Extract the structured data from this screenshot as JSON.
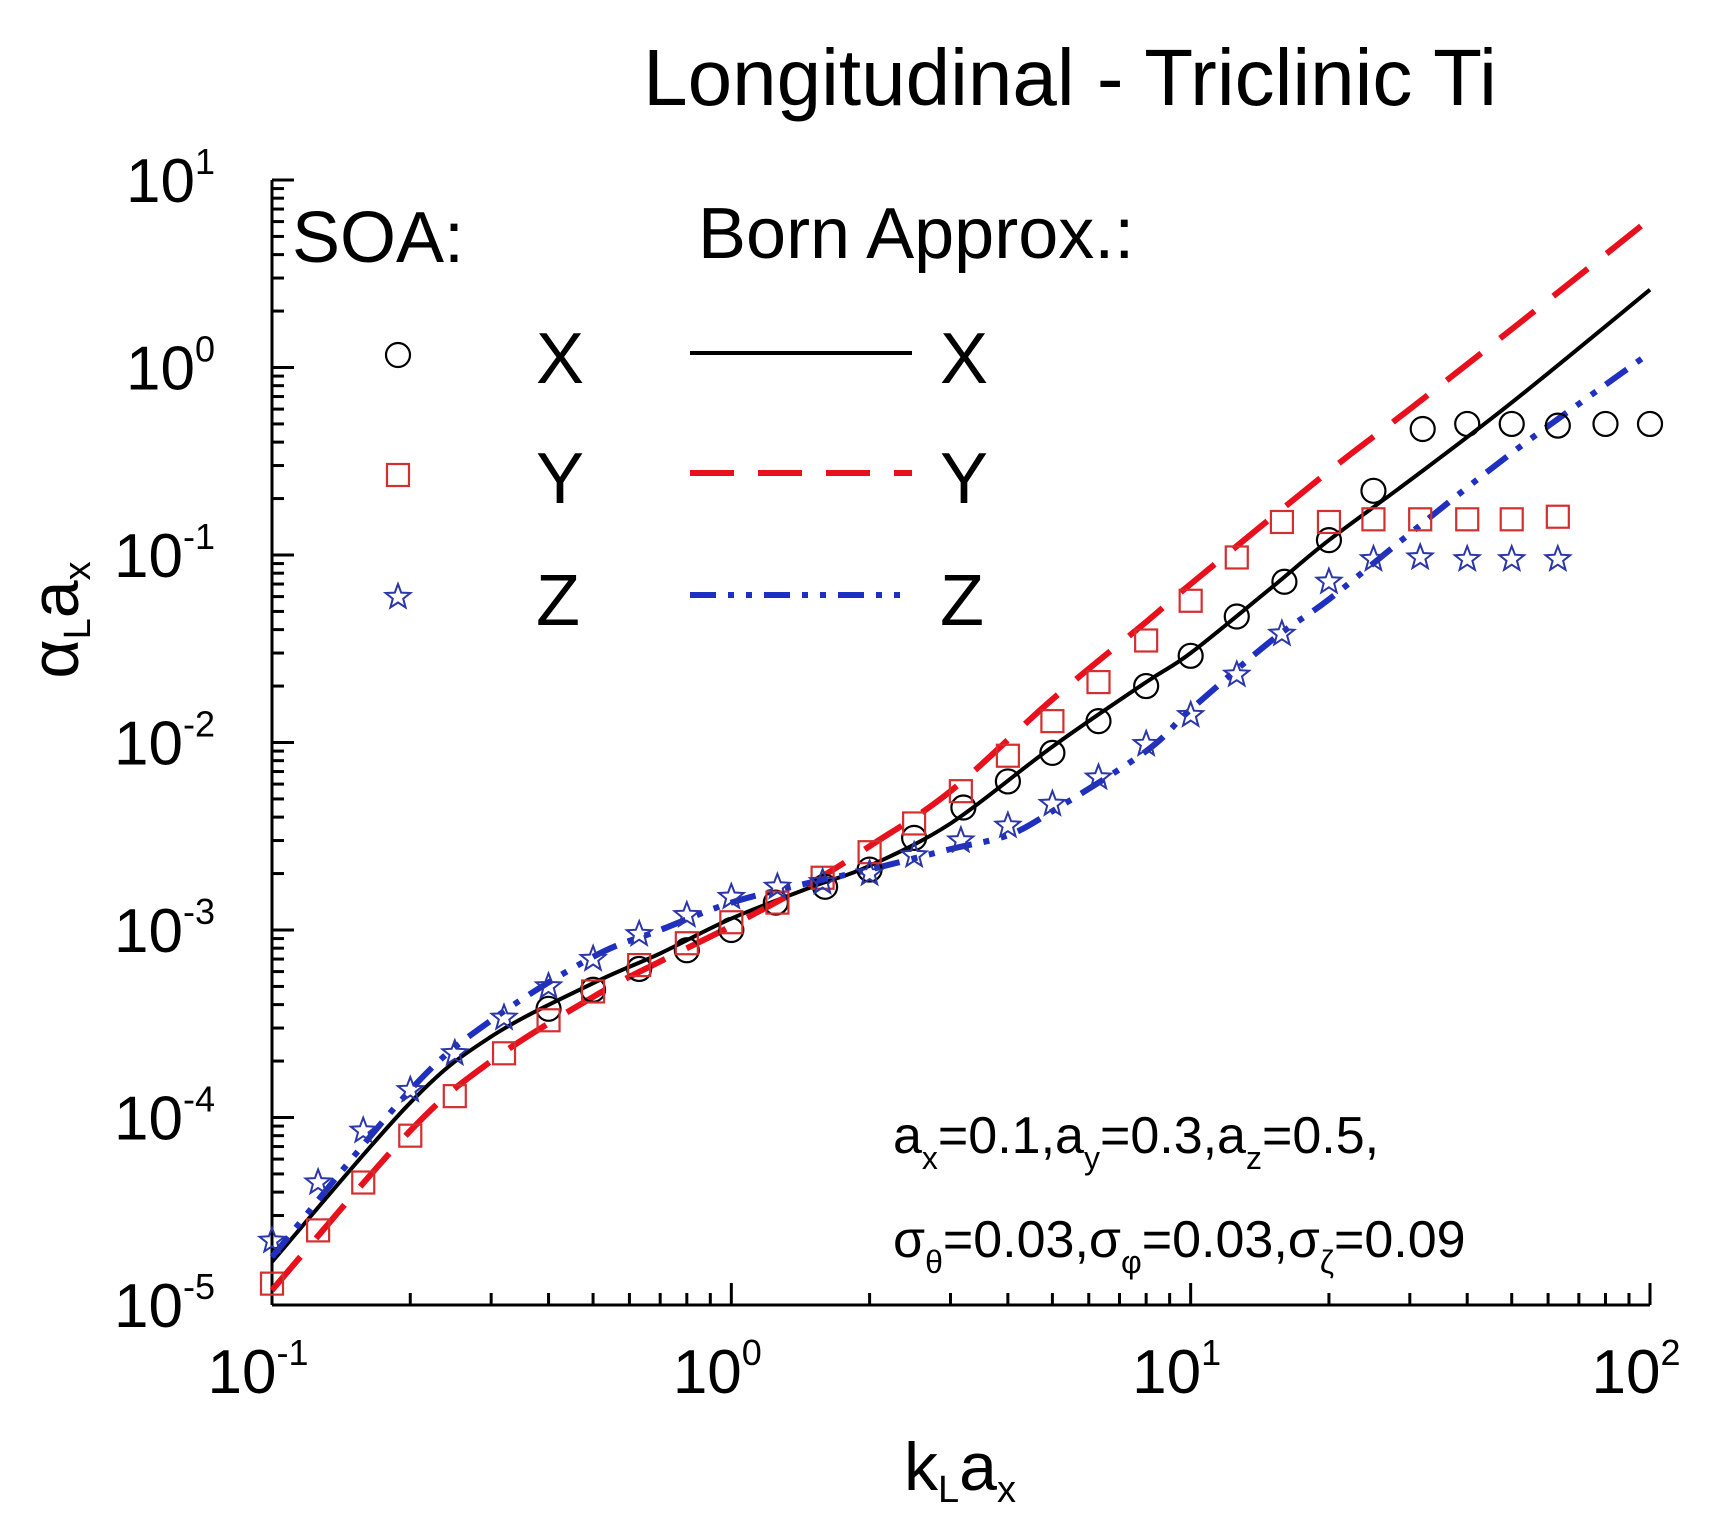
{
  "chart_data": {
    "type": "scatter",
    "title": "Longitudinal - Triclinic Ti",
    "xlabel": {
      "main": "k",
      "sub": "L",
      "tail": "a",
      "tail_sub": "x"
    },
    "ylabel": {
      "main": "α",
      "sub": "L",
      "tail": "a",
      "tail_sub": "x"
    },
    "xscale": "log",
    "yscale": "log",
    "xlim": [
      0.1,
      100
    ],
    "ylim": [
      1e-05,
      10
    ],
    "x_ticks": [
      {
        "value": 0.1,
        "base": "10",
        "exp": "-1"
      },
      {
        "value": 1,
        "base": "10",
        "exp": "0"
      },
      {
        "value": 10,
        "base": "10",
        "exp": "1"
      },
      {
        "value": 100,
        "base": "10",
        "exp": "2"
      }
    ],
    "y_ticks": [
      {
        "value": 1e-05,
        "base": "10",
        "exp": "-5"
      },
      {
        "value": 0.0001,
        "base": "10",
        "exp": "-4"
      },
      {
        "value": 0.001,
        "base": "10",
        "exp": "-3"
      },
      {
        "value": 0.01,
        "base": "10",
        "exp": "-2"
      },
      {
        "value": 0.1,
        "base": "10",
        "exp": "-1"
      },
      {
        "value": 1,
        "base": "10",
        "exp": "0"
      },
      {
        "value": 10,
        "base": "10",
        "exp": "1"
      }
    ],
    "legend": {
      "placement": "top-left",
      "soa_heading": "SOA:",
      "born_heading": "Born Approx.:",
      "labels": [
        "X",
        "Y",
        "Z"
      ]
    },
    "annotation": {
      "line1": [
        {
          "t": "a"
        },
        {
          "t": "x",
          "sub": true
        },
        {
          "t": "=0.1,a"
        },
        {
          "t": "y",
          "sub": true
        },
        {
          "t": "=0.3,a"
        },
        {
          "t": "z",
          "sub": true
        },
        {
          "t": "=0.5,"
        }
      ],
      "line2": [
        {
          "t": "σ"
        },
        {
          "t": "θ",
          "sub": true
        },
        {
          "t": "=0.03,σ"
        },
        {
          "t": "φ",
          "sub": true
        },
        {
          "t": "=0.03,σ"
        },
        {
          "t": "ζ",
          "sub": true
        },
        {
          "t": "=0.09"
        }
      ]
    },
    "series": [
      {
        "name": "Born Approx. X",
        "style": "solid",
        "color": "#000000",
        "x": [
          0.1,
          0.2,
          0.3,
          0.5,
          0.7,
          1,
          1.5,
          2,
          3,
          5,
          8,
          10,
          15,
          20,
          30,
          50,
          100
        ],
        "y": [
          1.7e-05,
          0.00012,
          0.00027,
          0.00052,
          0.00075,
          0.00115,
          0.0017,
          0.0022,
          0.0037,
          0.0095,
          0.021,
          0.03,
          0.067,
          0.12,
          0.25,
          0.65,
          2.6
        ]
      },
      {
        "name": "Born Approx. Y",
        "style": "dashed",
        "color": "#e8101c",
        "x": [
          0.1,
          0.2,
          0.3,
          0.5,
          0.7,
          1,
          1.5,
          2,
          3,
          5,
          8,
          10,
          20,
          30,
          50,
          100
        ],
        "y": [
          1.2e-05,
          8.5e-05,
          0.0002,
          0.00044,
          0.00068,
          0.00105,
          0.0018,
          0.0028,
          0.0055,
          0.017,
          0.044,
          0.07,
          0.28,
          0.6,
          1.6,
          6.2
        ]
      },
      {
        "name": "Born Approx. Z",
        "style": "dashdotdot",
        "color": "#1f2fbf",
        "x": [
          0.1,
          0.2,
          0.3,
          0.5,
          0.7,
          1,
          1.5,
          2,
          3,
          4,
          5,
          8,
          10,
          15,
          20,
          30,
          50,
          100
        ],
        "y": [
          1.8e-05,
          0.00014,
          0.00033,
          0.00072,
          0.001,
          0.0014,
          0.0018,
          0.0021,
          0.0027,
          0.0032,
          0.0043,
          0.009,
          0.015,
          0.035,
          0.058,
          0.13,
          0.35,
          1.2
        ]
      },
      {
        "name": "SOA X",
        "marker": "circle",
        "color": "#000000",
        "x": [
          0.4,
          0.5,
          0.63,
          0.8,
          1,
          1.25,
          1.6,
          2,
          2.5,
          3.2,
          4,
          5,
          6.3,
          8,
          10,
          12.6,
          16,
          20,
          25,
          32,
          40,
          50,
          63,
          80,
          100
        ],
        "y": [
          0.00038,
          0.00048,
          0.00062,
          0.00078,
          0.001,
          0.0014,
          0.0017,
          0.0021,
          0.0031,
          0.0045,
          0.0062,
          0.0088,
          0.013,
          0.02,
          0.029,
          0.047,
          0.072,
          0.12,
          0.22,
          0.47,
          0.5,
          0.5,
          0.49,
          0.5,
          0.5
        ]
      },
      {
        "name": "SOA Y",
        "marker": "square",
        "color": "#d32f2f",
        "x": [
          0.1,
          0.126,
          0.158,
          0.2,
          0.25,
          0.32,
          0.4,
          0.5,
          0.63,
          0.8,
          1,
          1.26,
          1.58,
          2,
          2.5,
          3.16,
          4,
          5,
          6.3,
          8,
          10,
          12.6,
          15.8,
          20,
          25,
          31.6,
          40,
          50,
          63
        ],
        "y": [
          1.3e-05,
          2.5e-05,
          4.5e-05,
          8e-05,
          0.00013,
          0.00022,
          0.00033,
          0.00047,
          0.00065,
          0.00085,
          0.0011,
          0.0014,
          0.0019,
          0.0026,
          0.0037,
          0.0055,
          0.0085,
          0.013,
          0.021,
          0.035,
          0.057,
          0.097,
          0.15,
          0.15,
          0.155,
          0.155,
          0.155,
          0.155,
          0.16
        ]
      },
      {
        "name": "SOA Z",
        "marker": "star",
        "color": "#2b36a8",
        "x": [
          0.1,
          0.126,
          0.158,
          0.2,
          0.25,
          0.32,
          0.4,
          0.5,
          0.63,
          0.8,
          1,
          1.26,
          1.58,
          2,
          2.5,
          3.16,
          4,
          5,
          6.3,
          8,
          10,
          12.6,
          15.8,
          20,
          25,
          31.6,
          40,
          50,
          63
        ],
        "y": [
          2.2e-05,
          4.5e-05,
          8.5e-05,
          0.00014,
          0.00022,
          0.00034,
          0.0005,
          0.0007,
          0.00095,
          0.0012,
          0.0015,
          0.0017,
          0.0018,
          0.002,
          0.0025,
          0.003,
          0.0036,
          0.0047,
          0.0065,
          0.0098,
          0.014,
          0.023,
          0.038,
          0.072,
          0.095,
          0.097,
          0.095,
          0.095,
          0.095
        ]
      }
    ]
  }
}
